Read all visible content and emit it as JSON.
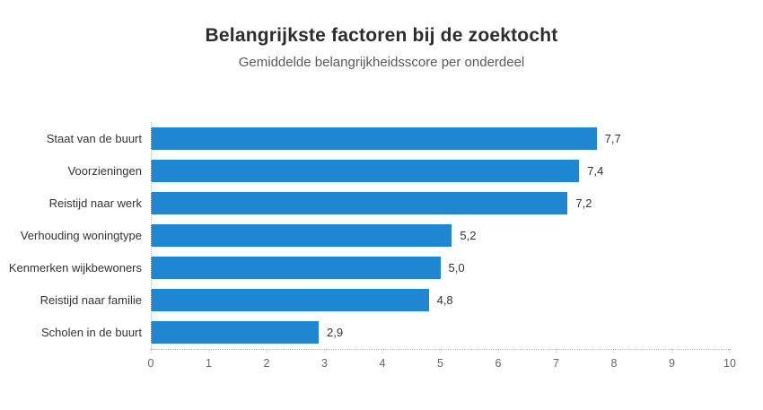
{
  "chart_data": {
    "type": "bar",
    "orientation": "horizontal",
    "title": "Belangrijkste factoren bij de zoektocht",
    "subtitle": "Gemiddelde belangrijkheidsscore per onderdeel",
    "categories": [
      "Staat van de buurt",
      "Voorzieningen",
      "Reistijd naar werk",
      "Verhouding woningtype",
      "Kenmerken wijkbewoners",
      "Reistijd naar familie",
      "Scholen in de buurt"
    ],
    "values": [
      7.7,
      7.4,
      7.2,
      5.2,
      5.0,
      4.8,
      2.9
    ],
    "value_labels": [
      "7,7",
      "7,4",
      "7,2",
      "5,2",
      "5,0",
      "4,8",
      "2,9"
    ],
    "xlabel": "",
    "ylabel": "",
    "xlim": [
      0,
      10
    ],
    "x_ticks": [
      "0",
      "1",
      "2",
      "3",
      "4",
      "5",
      "6",
      "7",
      "8",
      "9",
      "10"
    ],
    "grid": false,
    "legend": null,
    "colors": {
      "bar": "#1f87d2",
      "title": "#2d2d2d",
      "subtitle": "#595959",
      "label": "#333333",
      "tick": "#666666",
      "axis_line": "#b8b8b8",
      "background": "#ffffff"
    }
  }
}
